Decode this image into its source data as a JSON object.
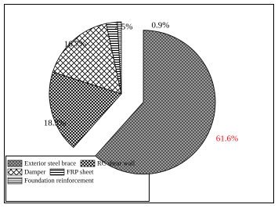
{
  "chart_data": {
    "type": "pie",
    "categories": [
      "Exterior steel brace",
      "RC shear wall",
      "Damper",
      "FRP sheet",
      "Foundation reinforcement"
    ],
    "values": [
      61.6,
      18.3,
      16.7,
      2.5,
      0.9
    ],
    "value_labels": [
      "61.6%",
      "18.3%",
      "16.7%",
      "2.5%",
      "0.9%"
    ],
    "value_label_colors": [
      "#e8141b",
      "#000000",
      "#000000",
      "#000000",
      "#000000"
    ],
    "explode": [
      true,
      false,
      false,
      false,
      false
    ]
  }
}
